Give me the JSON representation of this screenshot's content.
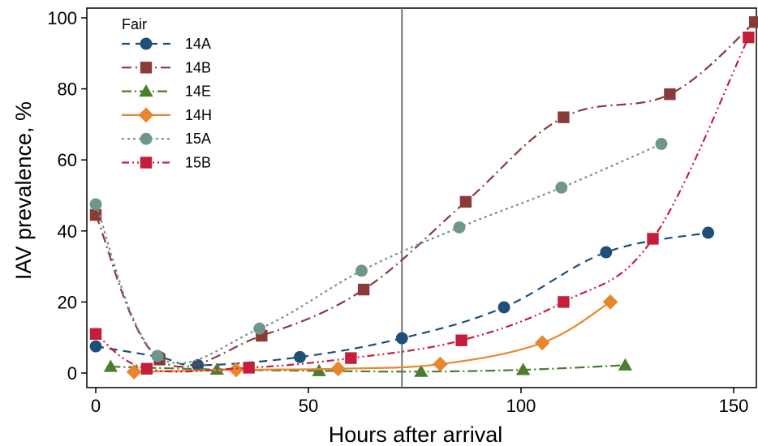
{
  "chart_data": {
    "type": "line",
    "title": "",
    "xlabel": "Hours after arrival",
    "ylabel": "IAV prevalence, %",
    "xlim": [
      -2,
      155
    ],
    "ylim": [
      0,
      100
    ],
    "xticks": [
      0,
      50,
      100,
      150
    ],
    "yticks": [
      0,
      20,
      40,
      60,
      80,
      100
    ],
    "grid": false,
    "reference_line_x": 72,
    "legend": {
      "title": "Fair",
      "placement": "top-left"
    },
    "series": [
      {
        "name": "14A",
        "color": "#1f4e79",
        "marker": "circle",
        "dash": "10,7",
        "x": [
          0,
          15,
          24,
          48,
          72,
          96,
          120,
          144
        ],
        "y": [
          7.5,
          4.5,
          2.2,
          4.5,
          9.8,
          18.5,
          34,
          39.5
        ]
      },
      {
        "name": "14B",
        "color": "#8b3a3a",
        "marker": "square",
        "dash": "12,5,2,5",
        "x": [
          0,
          15,
          39,
          63,
          87,
          110,
          135,
          155
        ],
        "y": [
          44.5,
          3.8,
          10.5,
          23.5,
          48.2,
          72,
          78.5,
          98.8
        ]
      },
      {
        "name": "14E",
        "color": "#4a7d2f",
        "marker": "triangle",
        "dash": "12,4,2,4",
        "x": [
          3.5,
          28.5,
          52.5,
          76.5,
          100.5,
          124.5
        ],
        "y": [
          1.8,
          1.0,
          0.6,
          0.4,
          0.9,
          2.2
        ]
      },
      {
        "name": "14H",
        "color": "#e8862e",
        "marker": "diamond",
        "dash": "",
        "x": [
          9,
          33,
          57,
          81,
          105,
          121
        ],
        "y": [
          0.3,
          0.9,
          1.2,
          2.5,
          8.5,
          20
        ]
      },
      {
        "name": "15A",
        "color": "#6f968c",
        "marker": "circle",
        "dash": "3,4",
        "x": [
          0,
          14.5,
          38.5,
          62.5,
          85.5,
          109.5,
          133
        ],
        "y": [
          47.5,
          4.8,
          12.5,
          28.8,
          41,
          52.2,
          64.5
        ]
      },
      {
        "name": "15B",
        "color": "#c41e3a",
        "marker": "square",
        "dash": "9,4,2,4,2,4",
        "x": [
          0,
          12,
          36,
          60,
          86,
          110,
          131,
          153.5
        ],
        "y": [
          11,
          1.2,
          1.5,
          4.2,
          9.2,
          20,
          37.8,
          94.5
        ]
      }
    ]
  }
}
